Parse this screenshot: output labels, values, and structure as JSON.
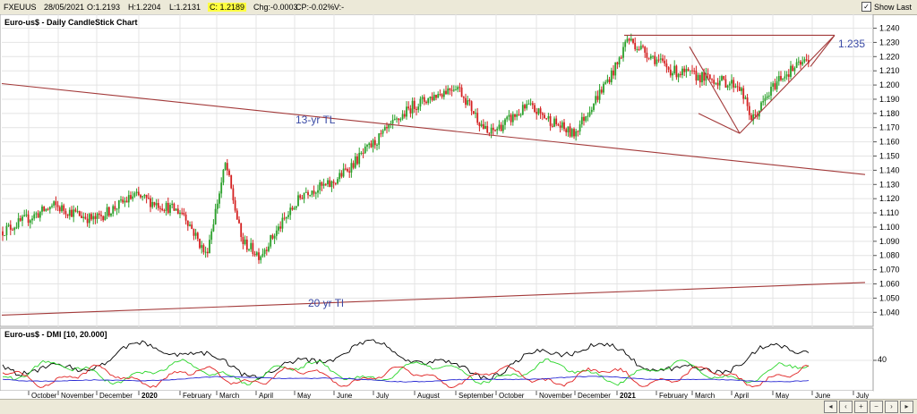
{
  "toolbar": {
    "symbol": "FXEUUS",
    "date": "28/05/2021",
    "open": "O:1.2193",
    "high": "H:1.2204",
    "low": "L:1.2131",
    "close": "C: 1.2189",
    "change": "Chg:-0.0003",
    "change_pct": "CP:-0.02%",
    "volume": "V:-",
    "show_last_label": "Show Last",
    "show_last_checked": true
  },
  "chart_data": [
    {
      "type": "candlestick",
      "title": "Euro-us$ - Daily CandleStick Chart",
      "ylim": [
        1.032,
        1.246
      ],
      "y_ticks": [
        "1.240",
        "1.230",
        "1.220",
        "1.210",
        "1.200",
        "1.190",
        "1.180",
        "1.170",
        "1.160",
        "1.150",
        "1.140",
        "1.130",
        "1.120",
        "1.110",
        "1.100",
        "1.090",
        "1.080",
        "1.070",
        "1.060",
        "1.050",
        "1.040"
      ],
      "x_ticks": [
        "October",
        "November",
        "December",
        "2020",
        "February",
        "March",
        "April",
        "May",
        "June",
        "July",
        "August",
        "September",
        "October",
        "November",
        "December",
        "2021",
        "February",
        "March",
        "April",
        "May",
        "June",
        "July"
      ],
      "grid": true,
      "up_color": "#2aa02a",
      "down_color": "#d42020",
      "series": {
        "x": [
          "2019-10",
          "2019-11",
          "2019-12",
          "2020-01",
          "2020-02",
          "2020-03",
          "2020-03",
          "2020-04",
          "2020-05",
          "2020-06",
          "2020-07",
          "2020-08",
          "2020-09",
          "2020-09",
          "2020-10",
          "2020-11",
          "2020-12",
          "2021-01",
          "2021-02",
          "2021-03",
          "2021-04",
          "2021-05",
          "2021-05"
        ],
        "close": [
          1.097,
          1.115,
          1.105,
          1.122,
          1.11,
          1.08,
          1.145,
          1.09,
          1.08,
          1.125,
          1.13,
          1.185,
          1.2,
          1.165,
          1.185,
          1.165,
          1.215,
          1.233,
          1.21,
          1.2,
          1.175,
          1.205,
          1.2189
        ]
      },
      "trend_lines": [
        {
          "name": "13-yr TL",
          "color": "#a33a3a"
        },
        {
          "name": "20 yr Tl",
          "color": "#a33a3a"
        },
        {
          "name": "1.235",
          "color": "#a33a3a",
          "level": 1.235
        }
      ],
      "annotations": {
        "tl13_label": "13-yr TL",
        "tl20_label": "20 yr Tl",
        "level_label": "1.235"
      }
    },
    {
      "type": "line",
      "title": "Euro-us$ - DMI [10, 20.000]",
      "y_ticks": [
        "40"
      ],
      "series": [
        {
          "color": "#000000"
        },
        {
          "color": "#2bd62b"
        },
        {
          "color": "#e02020"
        },
        {
          "color": "#2a2ad4"
        }
      ]
    }
  ],
  "bottom": {
    "nav_prev": "‹",
    "nav_next": "›",
    "nav_zoom_in": "+",
    "nav_zoom_out": "−",
    "nav_fit": "◂",
    "nav_end": "▸"
  }
}
